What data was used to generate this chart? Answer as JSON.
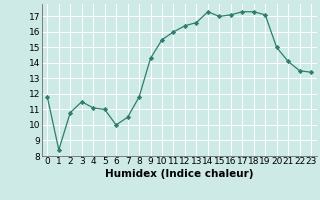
{
  "x": [
    0,
    1,
    2,
    3,
    4,
    5,
    6,
    7,
    8,
    9,
    10,
    11,
    12,
    13,
    14,
    15,
    16,
    17,
    18,
    19,
    20,
    21,
    22,
    23
  ],
  "y": [
    11.8,
    8.4,
    10.8,
    11.5,
    11.1,
    11.0,
    10.0,
    10.5,
    11.8,
    14.3,
    15.5,
    16.0,
    16.4,
    16.6,
    17.3,
    17.0,
    17.1,
    17.3,
    17.3,
    17.1,
    15.0,
    14.1,
    13.5,
    13.4
  ],
  "xlabel": "Humidex (Indice chaleur)",
  "ylim": [
    8,
    17.8
  ],
  "xlim": [
    -0.5,
    23.5
  ],
  "yticks": [
    8,
    9,
    10,
    11,
    12,
    13,
    14,
    15,
    16,
    17
  ],
  "xticks": [
    0,
    1,
    2,
    3,
    4,
    5,
    6,
    7,
    8,
    9,
    10,
    11,
    12,
    13,
    14,
    15,
    16,
    17,
    18,
    19,
    20,
    21,
    22,
    23
  ],
  "line_color": "#2e7d6e",
  "marker_color": "#2e7d6e",
  "bg_color": "#ceeae7",
  "grid_color": "#ffffff",
  "tick_label_fontsize": 6.5,
  "xlabel_fontsize": 7.5
}
